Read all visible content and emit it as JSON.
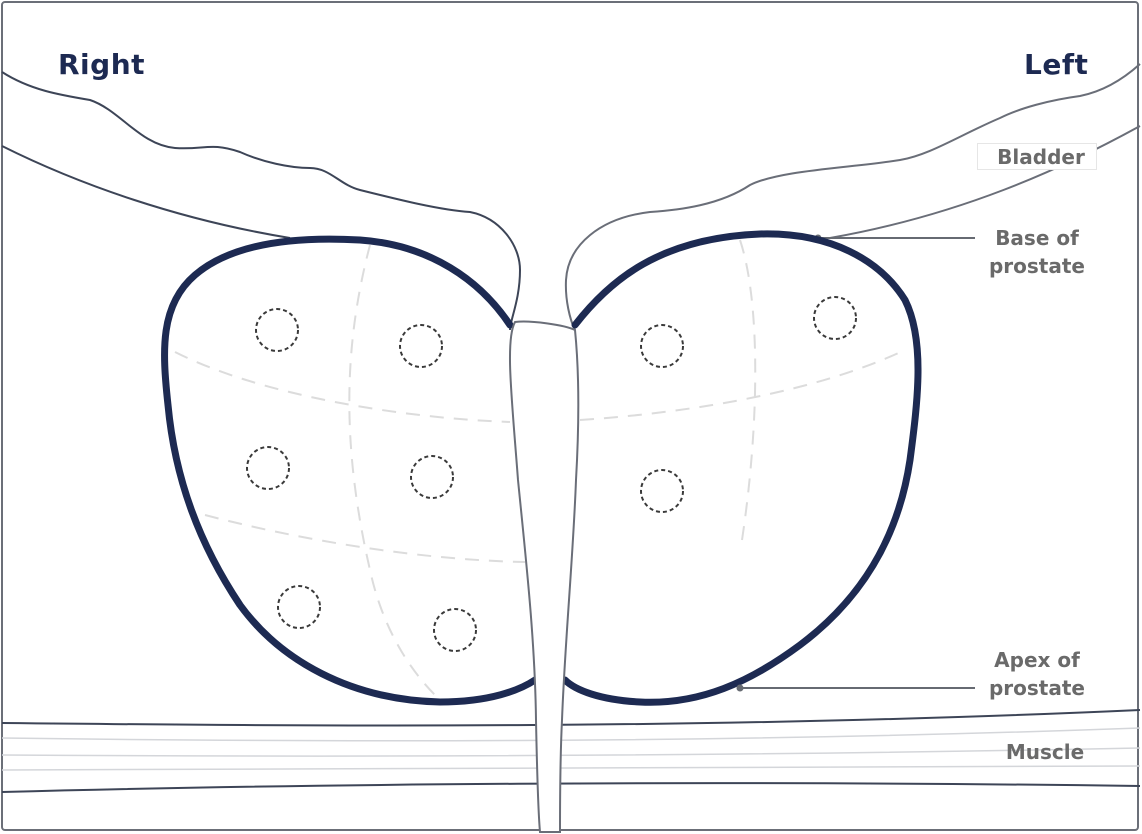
{
  "labels": {
    "right": "Right",
    "left": "Left",
    "bladder": "Bladder",
    "base_of_prostate": "Base of prostate",
    "apex_of_prostate": "Apex of prostate",
    "muscle": "Muscle"
  },
  "biopsy_sites": {
    "right_lobe_count": 6,
    "left_lobe_count": 3
  },
  "colors": {
    "prostate_outline": "#1d2a52",
    "anatomy_lines": "#3d4557",
    "label_text": "#6a6a6a",
    "side_label_text": "#1d2a52"
  }
}
